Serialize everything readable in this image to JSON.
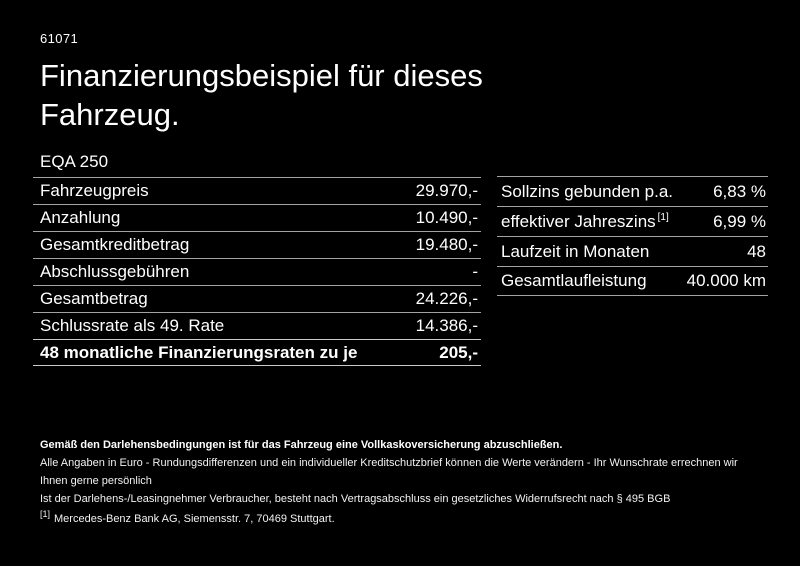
{
  "page": {
    "background": "#000000",
    "text_color": "#ffffff",
    "divider_color": "#a3a3a3",
    "ref_number": "61071",
    "title_line1": "Finanzierungsbeispiel für dieses",
    "title_line2": "Fahrzeug.",
    "model": "EQA 250"
  },
  "finance_table": {
    "rows": [
      {
        "label": "Fahrzeugpreis",
        "value": "29.970,-"
      },
      {
        "label": "Anzahlung",
        "value": "10.490,-"
      },
      {
        "label": "Gesamtkreditbetrag",
        "value": "19.480,-"
      },
      {
        "label": "Abschlussgebühren",
        "value": "-"
      },
      {
        "label": "Gesamtbetrag",
        "value": "24.226,-"
      },
      {
        "label": "Schlussrate als 49. Rate",
        "value": "14.386,-"
      },
      {
        "label": "48 monatliche Finanzierungsraten zu je",
        "value": "205,-",
        "bold": true
      }
    ]
  },
  "conditions_table": {
    "rows": [
      {
        "label": "Sollzins gebunden p.a.",
        "value": "6,83 %"
      },
      {
        "label": "effektiver Jahreszins",
        "footnote_marker": "[1]",
        "value": "6,99 %"
      },
      {
        "label": "Laufzeit in Monaten",
        "value": "48"
      },
      {
        "label": "Gesamtlaufleistung",
        "value": "40.000 km"
      }
    ]
  },
  "legal": {
    "insurance_note": "Gemäß den Darlehensbedingungen ist für das Fahrzeug eine Vollkaskoversicherung abzuschließen.",
    "note_line1": "Alle Angaben in Euro - Rundungsdifferenzen und ein individueller Kreditschutzbrief können die Werte verändern - Ihr Wunschrate errechnen wir Ihnen gerne persönlich",
    "note_line2": "Ist der Darlehens-/Leasingnehmer Verbraucher, besteht nach Vertragsabschluss ein gesetzliches Widerrufsrecht nach § 495 BGB",
    "footnote_marker": "[1]",
    "footnote_text": "Mercedes-Benz Bank AG, Siemensstr. 7, 70469 Stuttgart."
  }
}
